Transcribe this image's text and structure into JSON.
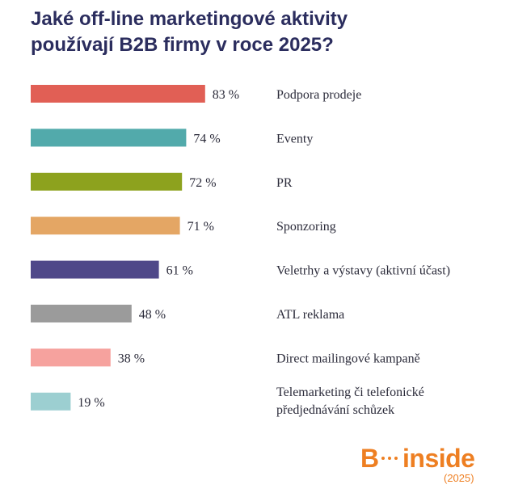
{
  "title_lines": [
    "Jaké off-line marketingové aktivity",
    "používají B2B firmy v roce 2025?"
  ],
  "chart_data": {
    "type": "bar",
    "orientation": "horizontal",
    "title": "Jaké off-line marketingové aktivity používají B2B firmy v roce 2025?",
    "categories": [
      [
        "Podpora prodeje"
      ],
      [
        "Eventy"
      ],
      [
        "PR"
      ],
      [
        "Sponzoring"
      ],
      [
        "Veletrhy a výstavy (aktivní účast)"
      ],
      [
        "ATL reklama"
      ],
      [
        "Direct mailingové kampaně"
      ],
      [
        "Telemarketing či telefonické",
        "předjednávání schůzek"
      ]
    ],
    "values": [
      83,
      74,
      72,
      71,
      61,
      48,
      38,
      19
    ],
    "value_labels": [
      "83 %",
      "74 %",
      "72 %",
      "71 %",
      "61 %",
      "48 %",
      "38 %",
      "19 %"
    ],
    "colors": [
      "#e15f55",
      "#52aaab",
      "#8da21e",
      "#e4a664",
      "#4f4889",
      "#9b9b9b",
      "#f6a29e",
      "#9ccfd1"
    ],
    "grid": false,
    "legend": "none"
  },
  "logo": {
    "brand_letter": "B",
    "brand_word": "inside",
    "year": "(2025)",
    "color": "#ee7f22"
  }
}
